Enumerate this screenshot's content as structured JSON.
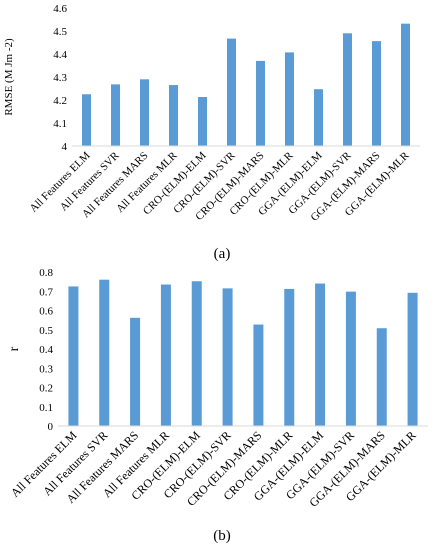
{
  "chart_data": [
    {
      "type": "bar",
      "panel_label": "(a)",
      "categories": [
        "All Features ELM",
        "All Features SVR",
        "All Features MARS",
        "All Features MLR",
        "CRO-(ELM)-ELM",
        "CRO-(ELM)-SVR",
        "CRO-(ELM)-MARS",
        "CRO-(ELM)-MLR",
        "GGA-(ELM)-ELM",
        "GGA-(ELM)-SVR",
        "GGA-(ELM)-MARS",
        "GGA-(ELM)-MLR"
      ],
      "values": [
        4.225,
        4.268,
        4.29,
        4.265,
        4.213,
        4.467,
        4.37,
        4.407,
        4.247,
        4.49,
        4.456,
        4.532
      ],
      "ylabel": "RMSE (M Jm -2)",
      "ylim": [
        4,
        4.6
      ],
      "yticks": [
        "4",
        "4.1",
        "4.2",
        "4.3",
        "4.4",
        "4.5",
        "4.6"
      ],
      "bar_color": "#5b9bd5",
      "grid": false
    },
    {
      "type": "bar",
      "panel_label": "(b)",
      "categories": [
        "All Features ELM",
        "All Features SVR",
        "All Features MARS",
        "All Features MLR",
        "CRO-(ELM)-ELM",
        "CRO-(ELM)-SVR",
        "CRO-(ELM)-MARS",
        "CRO-(ELM)-MLR",
        "GGA-(ELM)-ELM",
        "GGA-(ELM)-SVR",
        "GGA-(ELM)-MARS",
        "GGA-(ELM)-MLR"
      ],
      "values": [
        0.725,
        0.76,
        0.562,
        0.735,
        0.752,
        0.715,
        0.527,
        0.712,
        0.74,
        0.698,
        0.508,
        0.692
      ],
      "ylabel": "r",
      "ylim": [
        0,
        0.8
      ],
      "yticks": [
        "0",
        "0.1",
        "0.2",
        "0.3",
        "0.4",
        "0.5",
        "0.6",
        "0.7",
        "0.8"
      ],
      "bar_color": "#5b9bd5",
      "grid": false
    }
  ]
}
